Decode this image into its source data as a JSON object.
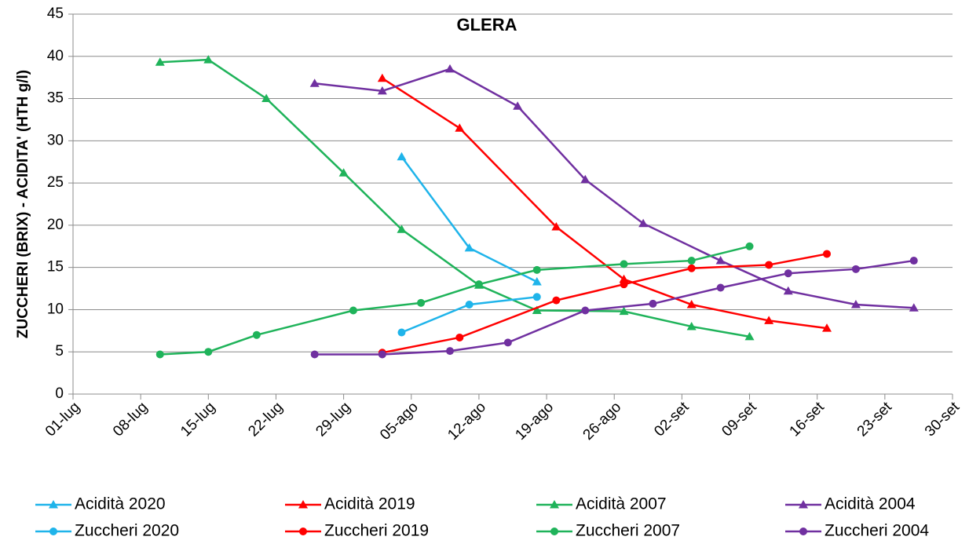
{
  "chart_data": {
    "type": "line",
    "title": "GLERA",
    "y_label": "ZUCCHERI (BRIX) - ACIDITA' (HTH g/l)",
    "xticks": [
      "01-lug",
      "08-lug",
      "15-lug",
      "22-lug",
      "29-lug",
      "05-ago",
      "12-ago",
      "19-ago",
      "26-ago",
      "02-set",
      "09-set",
      "16-set",
      "23-set",
      "30-set"
    ],
    "ylim": [
      0,
      45
    ],
    "yticks": [
      0,
      5,
      10,
      15,
      20,
      25,
      30,
      35,
      40,
      45
    ],
    "grid": true,
    "legend": "bottom",
    "series": [
      {
        "name": "Acidità 2020",
        "color": "#1fb4ea",
        "marker": "triangle",
        "x": [
          "04-ago",
          "11-ago",
          "18-ago"
        ],
        "values": [
          28.1,
          17.3,
          13.3
        ]
      },
      {
        "name": "Acidità 2019",
        "color": "#ff0000",
        "marker": "triangle",
        "x": [
          "02-ago",
          "10-ago",
          "20-ago",
          "27-ago",
          "03-set",
          "11-set",
          "17-set"
        ],
        "values": [
          37.4,
          31.5,
          19.8,
          13.6,
          10.6,
          8.7,
          7.8
        ]
      },
      {
        "name": "Acidità 2007",
        "color": "#1fb35a",
        "marker": "triangle",
        "x": [
          "10-lug",
          "15-lug",
          "21-lug",
          "29-lug",
          "04-ago",
          "12-ago",
          "18-ago",
          "27-ago",
          "03-set",
          "09-set"
        ],
        "values": [
          39.3,
          39.6,
          35.0,
          26.2,
          19.5,
          12.9,
          9.9,
          9.8,
          8.0,
          6.8
        ]
      },
      {
        "name": "Acidità 2004",
        "color": "#7030a0",
        "marker": "triangle",
        "x": [
          "26-lug",
          "02-ago",
          "09-ago",
          "16-ago",
          "23-ago",
          "29-ago",
          "06-set",
          "13-set",
          "20-set",
          "26-set"
        ],
        "values": [
          36.8,
          35.9,
          38.5,
          34.1,
          25.4,
          20.2,
          15.8,
          12.2,
          10.6,
          10.2
        ]
      },
      {
        "name": "Zuccheri 2020",
        "color": "#1fb4ea",
        "marker": "circle",
        "x": [
          "04-ago",
          "11-ago",
          "18-ago"
        ],
        "values": [
          7.3,
          10.6,
          11.5
        ]
      },
      {
        "name": "Zuccheri 2019",
        "color": "#ff0000",
        "marker": "circle",
        "x": [
          "02-ago",
          "10-ago",
          "20-ago",
          "27-ago",
          "03-set",
          "11-set",
          "17-set"
        ],
        "values": [
          4.9,
          6.7,
          11.1,
          13.0,
          14.9,
          15.3,
          16.6
        ]
      },
      {
        "name": "Zuccheri 2007",
        "color": "#1fb35a",
        "marker": "circle",
        "x": [
          "10-lug",
          "15-lug",
          "20-lug",
          "30-lug",
          "06-ago",
          "12-ago",
          "18-ago",
          "27-ago",
          "03-set",
          "09-set"
        ],
        "values": [
          4.7,
          5.0,
          7.0,
          9.9,
          10.8,
          13.0,
          14.7,
          15.4,
          15.8,
          17.5
        ]
      },
      {
        "name": "Zuccheri 2004",
        "color": "#7030a0",
        "marker": "circle",
        "x": [
          "26-lug",
          "02-ago",
          "09-ago",
          "15-ago",
          "23-ago",
          "30-ago",
          "06-set",
          "13-set",
          "20-set",
          "26-set"
        ],
        "values": [
          4.7,
          4.7,
          5.1,
          6.1,
          9.9,
          10.7,
          12.6,
          14.3,
          14.8,
          15.8
        ]
      }
    ]
  }
}
